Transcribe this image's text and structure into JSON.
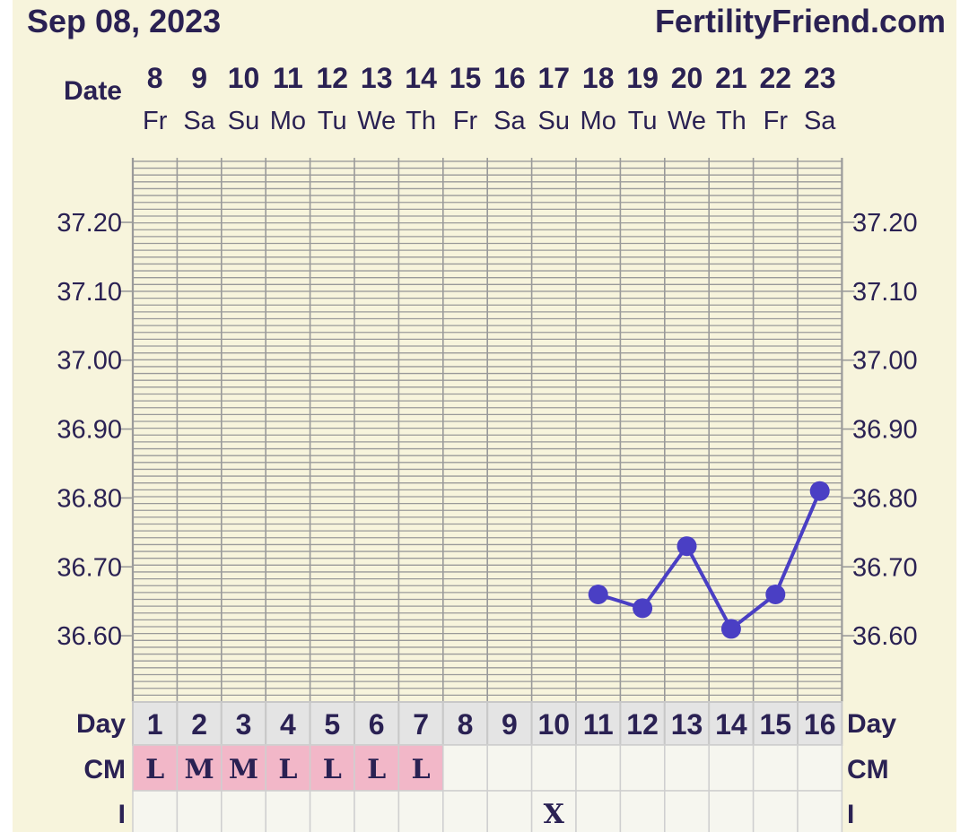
{
  "header": {
    "date": "Sep 08, 2023",
    "site": "FertilityFriend.com"
  },
  "colors": {
    "background": "#f7f4dc",
    "text": "#2a2153",
    "grid": "#9a9a9a",
    "line": "#4a3fc4",
    "cm_fill": "#f2b7c8",
    "day_row_fill": "#e4e4e4",
    "cell_fill": "#f6f6ef"
  },
  "chart_data": {
    "type": "line",
    "date_label": "Date",
    "dates": [
      "8",
      "9",
      "10",
      "11",
      "12",
      "13",
      "14",
      "15",
      "16",
      "17",
      "18",
      "19",
      "20",
      "21",
      "22",
      "23"
    ],
    "weekdays": [
      "Fr",
      "Sa",
      "Su",
      "Mo",
      "Tu",
      "We",
      "Th",
      "Fr",
      "Sa",
      "Su",
      "Mo",
      "Tu",
      "We",
      "Th",
      "Fr",
      "Sa"
    ],
    "y_ticks": [
      "37.20",
      "37.10",
      "37.00",
      "36.90",
      "36.80",
      "36.70",
      "36.60"
    ],
    "ylim": [
      36.52,
      37.28
    ],
    "grid": true,
    "series": [
      {
        "values": [
          null,
          null,
          null,
          null,
          null,
          null,
          null,
          null,
          null,
          null,
          36.66,
          36.64,
          36.73,
          36.61,
          36.66,
          36.81
        ]
      }
    ],
    "day_label": "Day",
    "days": [
      "1",
      "2",
      "3",
      "4",
      "5",
      "6",
      "7",
      "8",
      "9",
      "10",
      "11",
      "12",
      "13",
      "14",
      "15",
      "16"
    ],
    "cm_label": "CM",
    "cm": [
      "L",
      "M",
      "M",
      "L",
      "L",
      "L",
      "L",
      "",
      "",
      "",
      "",
      "",
      "",
      "",
      "",
      ""
    ],
    "i_label": "I",
    "i_marks": [
      "",
      "",
      "",
      "",
      "",
      "",
      "",
      "",
      "",
      "X",
      "",
      "",
      "",
      "",
      "",
      ""
    ]
  }
}
